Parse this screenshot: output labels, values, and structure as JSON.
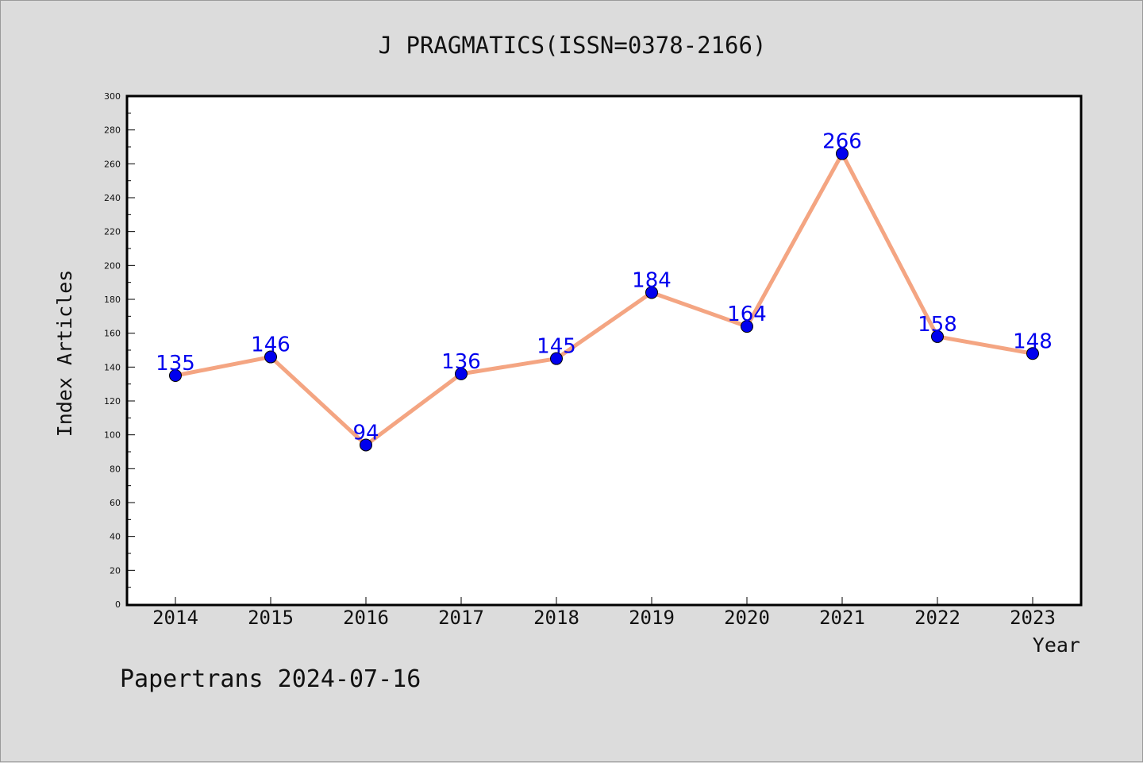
{
  "chart_data": {
    "type": "line",
    "title": "J PRAGMATICS(ISSN=0378-2166)",
    "xlabel": "Year",
    "ylabel": "Index Articles",
    "categories": [
      "2014",
      "2015",
      "2016",
      "2017",
      "2018",
      "2019",
      "2020",
      "2021",
      "2022",
      "2023"
    ],
    "series": [
      {
        "values": [
          135,
          146,
          94,
          136,
          145,
          184,
          164,
          266,
          158,
          148
        ]
      }
    ],
    "ylim": [
      0,
      300
    ],
    "yticks": [
      0,
      20,
      40,
      60,
      80,
      100,
      120,
      140,
      160,
      180,
      200,
      220,
      240,
      260,
      280,
      300
    ],
    "grid": false,
    "line_color": "#f4a582",
    "marker_color": "#0000ee",
    "label_color": "#0000ee"
  },
  "footer": {
    "credit": "Papertrans 2024-07-16"
  }
}
